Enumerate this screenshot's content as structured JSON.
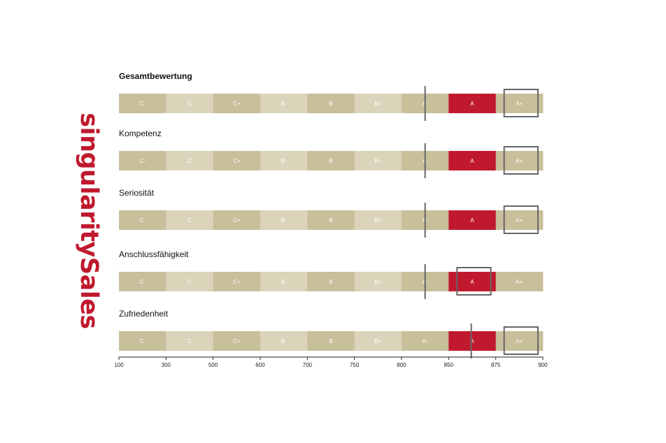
{
  "brand": "singularitySales",
  "chart_data": {
    "type": "bar",
    "grades": [
      "C-",
      "C",
      "C+",
      "B-",
      "B",
      "B+",
      "A-",
      "A",
      "A+"
    ],
    "scale_ticks": [
      "100",
      "300",
      "500",
      "600",
      "700",
      "750",
      "800",
      "850",
      "875",
      "900"
    ],
    "colors": {
      "dark": "#c8bf9b",
      "light": "#dcd4ba",
      "highlight": "#c0192d",
      "marker": "#666666"
    },
    "rows": [
      {
        "title": "Gesamtbewertung",
        "bold": true,
        "highlight": "A",
        "box": "A+",
        "marker": 825
      },
      {
        "title": "Kompetenz",
        "bold": false,
        "highlight": "A",
        "box": "A+",
        "marker": 825
      },
      {
        "title": "Seriosität",
        "bold": false,
        "highlight": "A",
        "box": "A+",
        "marker": 825
      },
      {
        "title": "Anschlussfähigkeit",
        "bold": false,
        "highlight": "A",
        "box": "A",
        "marker": 825
      },
      {
        "title": "Zufriedenheit",
        "bold": false,
        "highlight": "A",
        "box": "A+",
        "marker": 862
      }
    ]
  }
}
